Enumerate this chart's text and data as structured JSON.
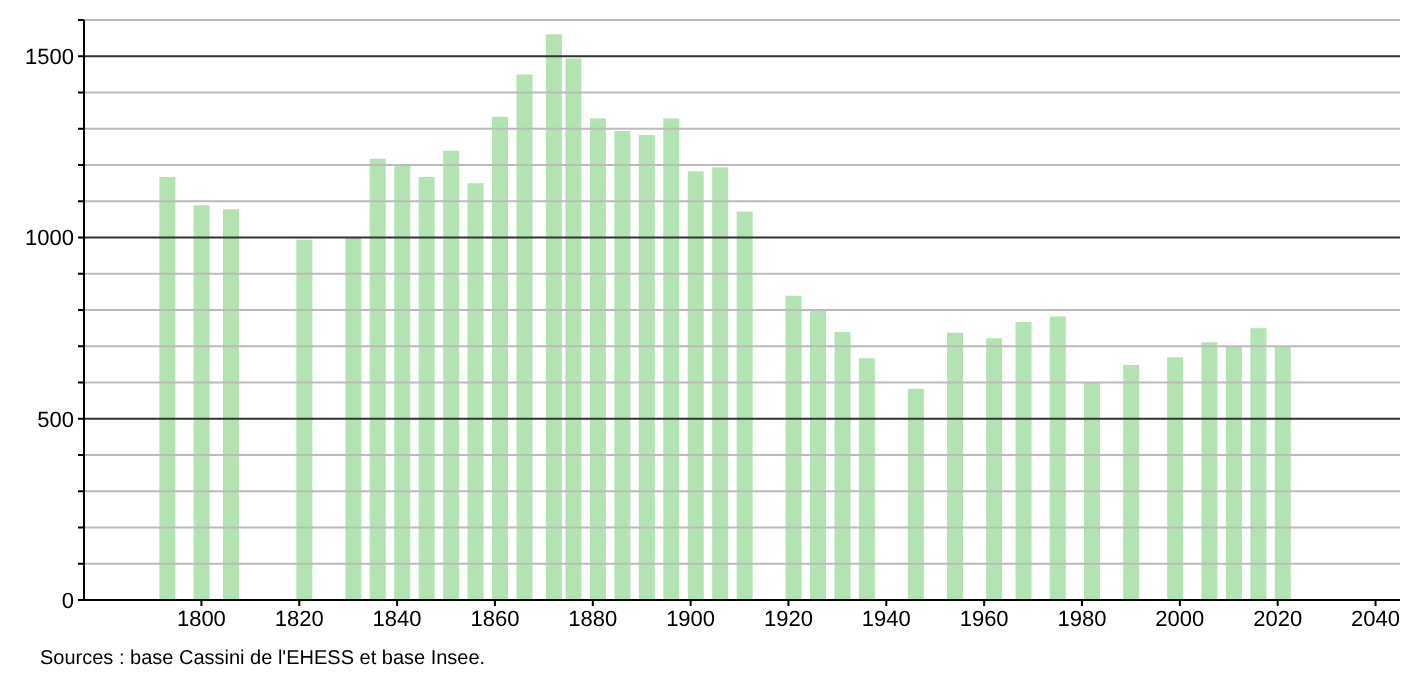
{
  "chart_data": {
    "type": "bar",
    "x": [
      1793,
      1800,
      1806,
      1821,
      1831,
      1836,
      1841,
      1846,
      1851,
      1856,
      1861,
      1866,
      1872,
      1876,
      1881,
      1886,
      1891,
      1896,
      1901,
      1906,
      1911,
      1921,
      1926,
      1931,
      1936,
      1946,
      1954,
      1962,
      1968,
      1975,
      1982,
      1990,
      1999,
      2006,
      2011,
      2016,
      2021
    ],
    "values": [
      1167,
      1089,
      1078,
      994,
      1000,
      1217,
      1200,
      1167,
      1239,
      1150,
      1333,
      1450,
      1561,
      1494,
      1328,
      1294,
      1283,
      1328,
      1183,
      1194,
      1072,
      839,
      800,
      739,
      667,
      583,
      737,
      722,
      767,
      782,
      600,
      648,
      670,
      711,
      698,
      750,
      698
    ],
    "color": "#b3e3b3",
    "xlim": [
      1776,
      2045
    ],
    "xticks": [
      1800,
      1820,
      1840,
      1860,
      1880,
      1900,
      1920,
      1940,
      1960,
      1980,
      2000,
      2020,
      2040
    ],
    "ylim": [
      0,
      1600
    ],
    "yticks": [
      0,
      {
        "value": 100,
        "label": null
      },
      {
        "value": 200,
        "label": null
      },
      {
        "value": 300,
        "label": null
      },
      {
        "value": 400,
        "label": null
      },
      500,
      {
        "value": 600,
        "label": null
      },
      {
        "value": 700,
        "label": null
      },
      {
        "value": 800,
        "label": null
      },
      {
        "value": 900,
        "label": null
      },
      1000,
      {
        "value": 1100,
        "label": null
      },
      {
        "value": 1200,
        "label": null
      },
      {
        "value": 1300,
        "label": null
      },
      {
        "value": 1400,
        "label": null
      },
      1500,
      {
        "value": 1600,
        "label": null
      }
    ],
    "grid": "y",
    "annotations": [
      "Sources : base Cassini de l'EHESS et base Insee."
    ]
  }
}
